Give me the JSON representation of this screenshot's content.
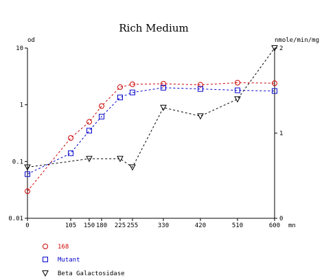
{
  "chart_data": {
    "type": "line",
    "title": "Rich Medium",
    "xlabel": "mn",
    "ylabel_left": "od",
    "ylabel_right": "nmole/min/mg",
    "x_ticks": [
      0,
      105,
      150,
      180,
      225,
      255,
      330,
      420,
      510,
      600
    ],
    "x_tick_labels": [
      "0",
      "105",
      "150",
      "180",
      "225",
      "255",
      "330",
      "420",
      "510",
      "600"
    ],
    "xlim": [
      0,
      600
    ],
    "y_left": {
      "scale": "log",
      "lim": [
        0.01,
        10
      ],
      "ticks": [
        0.01,
        0.1,
        1,
        10
      ],
      "tick_labels": [
        "0.01",
        "0.1",
        "1",
        "10"
      ]
    },
    "y_right": {
      "scale": "linear",
      "lim": [
        0,
        2
      ],
      "ticks": [
        0,
        1,
        2
      ],
      "tick_labels": [
        "0",
        "1",
        "2"
      ]
    },
    "grid": false,
    "legend_position": "bottom-left",
    "series": [
      {
        "name": "168",
        "axis": "left",
        "color": "#cc0000",
        "marker": "circle",
        "x": [
          0,
          105,
          150,
          180,
          225,
          255,
          330,
          420,
          510,
          600
        ],
        "y": [
          0.03,
          0.26,
          0.5,
          0.95,
          2.05,
          2.3,
          2.35,
          2.25,
          2.45,
          2.4
        ]
      },
      {
        "name": "Mutant",
        "axis": "left",
        "color": "#0000cc",
        "marker": "square",
        "x": [
          0,
          105,
          150,
          180,
          225,
          255,
          330,
          420,
          510,
          600
        ],
        "y": [
          0.06,
          0.14,
          0.35,
          0.62,
          1.35,
          1.65,
          2.0,
          1.9,
          1.8,
          1.75
        ]
      },
      {
        "name": "Beta Galactosidase",
        "axis": "right",
        "color": "#000000",
        "marker": "triangle-down",
        "x": [
          0,
          150,
          225,
          255,
          330,
          420,
          510,
          600
        ],
        "y": [
          0.6,
          0.7,
          0.7,
          0.6,
          1.3,
          1.2,
          1.4,
          2.0
        ]
      }
    ]
  }
}
